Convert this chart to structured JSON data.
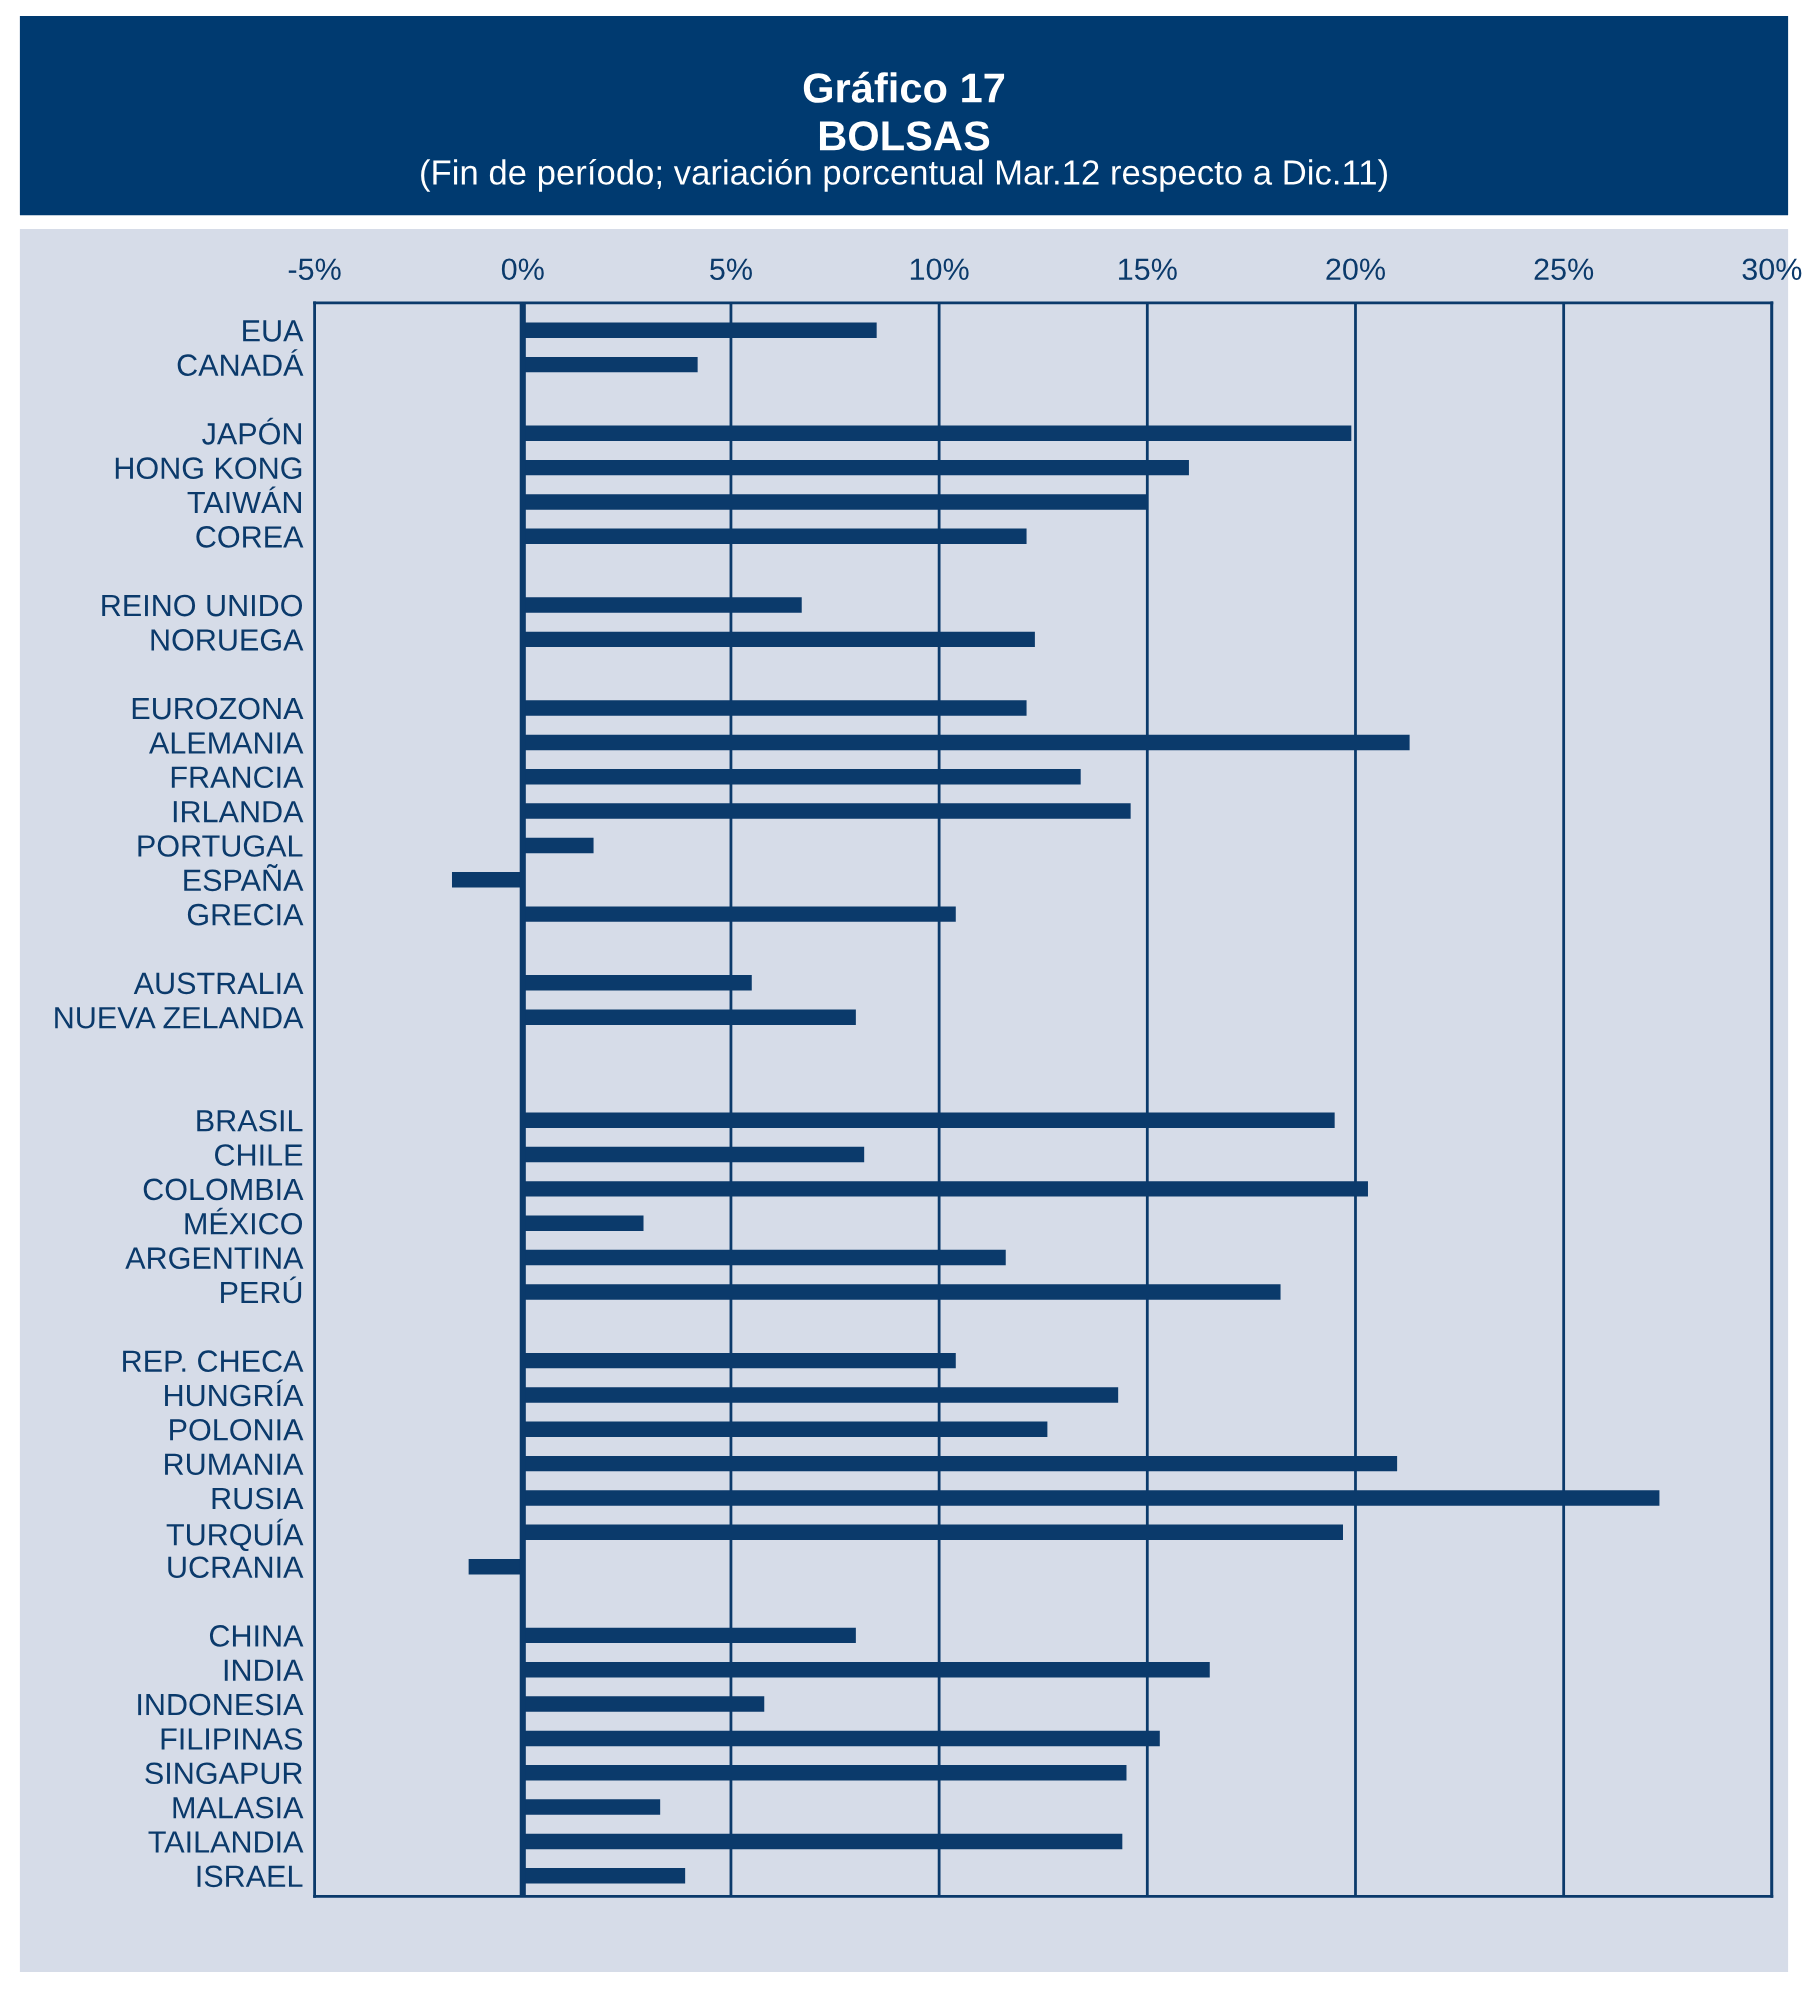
{
  "chart_data": {
    "type": "bar",
    "orientation": "horizontal",
    "title": "Gráfico 17\nBOLSAS",
    "subtitle": "(Fin de período; variación porcentual Mar.12 respecto a Dic.11)",
    "categories": [
      "EUA",
      "CANADÁ",
      null,
      "JAPÓN",
      "HONG KONG",
      "TAIWÁN",
      "COREA",
      null,
      "REINO UNIDO",
      "NORUEGA",
      null,
      "EUROZONA",
      "ALEMANIA",
      "FRANCIA",
      "IRLANDA",
      "PORTUGAL",
      "ESPAÑA",
      "GRECIA",
      null,
      "AUSTRALIA",
      "NUEVA ZELANDA",
      null,
      null,
      "BRASIL",
      "CHILE",
      "COLOMBIA",
      "MÉXICO",
      "ARGENTINA",
      "PERÚ",
      null,
      "REP. CHECA",
      "HUNGRÍA",
      "POLONIA",
      "RUMANIA",
      "RUSIA",
      "TURQUÍA",
      "UCRANIA",
      null,
      "CHINA",
      "INDIA",
      "INDONESIA",
      "FILIPINAS",
      "SINGAPUR",
      "MALASIA",
      "TAILANDIA",
      "ISRAEL"
    ],
    "values": [
      8.5,
      4.2,
      null,
      19.9,
      16.0,
      15.0,
      12.1,
      null,
      6.7,
      12.3,
      null,
      12.1,
      21.3,
      13.4,
      14.6,
      1.7,
      -1.7,
      10.4,
      null,
      5.5,
      8.0,
      null,
      null,
      19.5,
      8.2,
      20.3,
      2.9,
      11.6,
      18.2,
      null,
      10.4,
      14.3,
      12.6,
      21.0,
      27.3,
      19.7,
      -1.3,
      null,
      8.0,
      16.5,
      5.8,
      15.3,
      14.5,
      3.3,
      14.4,
      3.9
    ],
    "color": "#0b3a6b",
    "xlim": [
      -5,
      30
    ],
    "xticks": [
      {
        "value": -5,
        "label": "-5%"
      },
      {
        "value": 0,
        "label": "0%"
      },
      {
        "value": 5,
        "label": "5%"
      },
      {
        "value": 10,
        "label": "10%"
      },
      {
        "value": 15,
        "label": "15%"
      },
      {
        "value": 20,
        "label": "20%"
      },
      {
        "value": 25,
        "label": "25%"
      },
      {
        "value": 30,
        "label": "30%"
      }
    ],
    "grid": "x",
    "ref_lines": [
      {
        "axis": "x",
        "value": 0,
        "color": "#0b3a6b"
      }
    ]
  }
}
